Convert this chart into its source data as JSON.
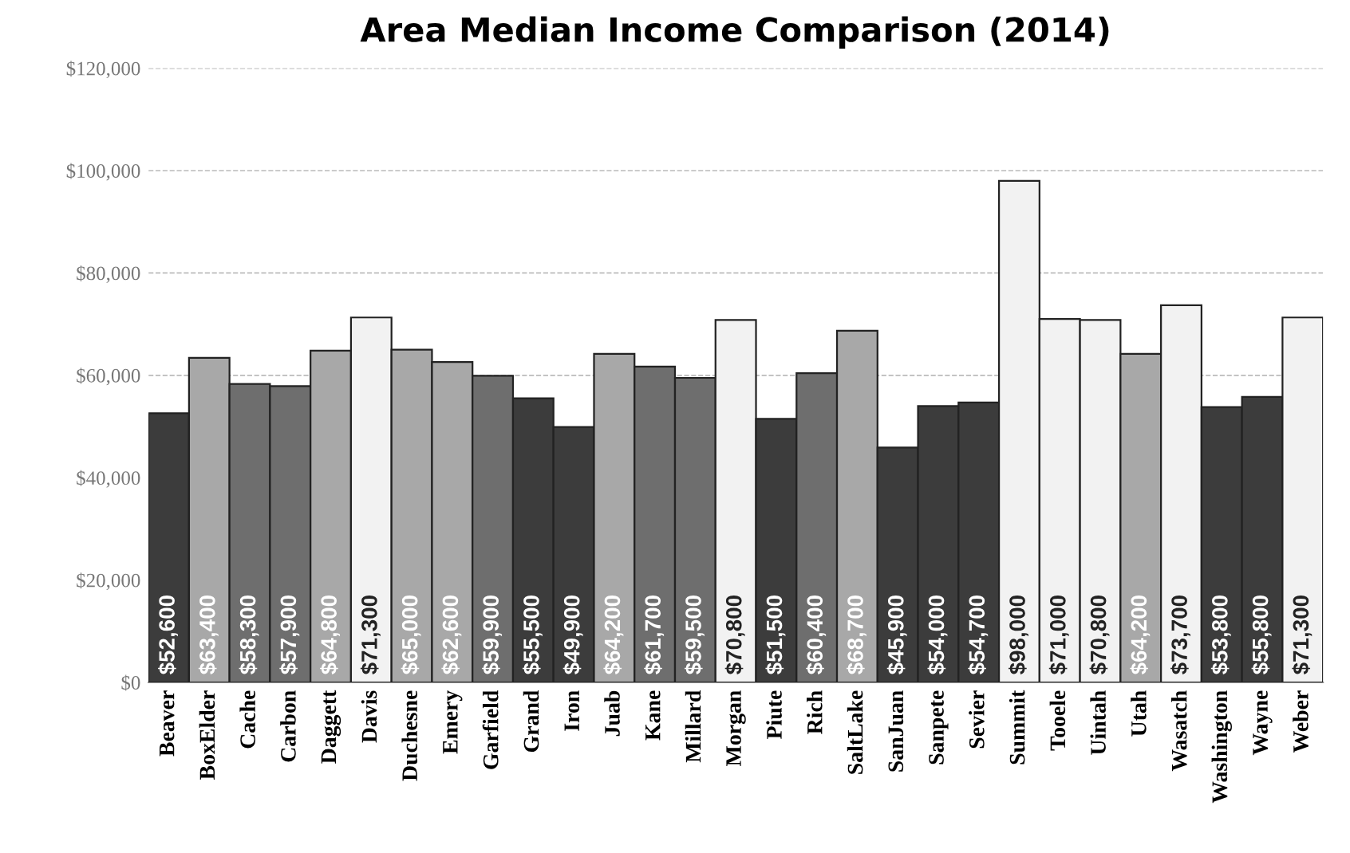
{
  "chart_data": {
    "type": "bar",
    "title": "Area Median Income Comparison (2014)",
    "categories": [
      "Beaver",
      "BoxElder",
      "Cache",
      "Carbon",
      "Daggett",
      "Davis",
      "Duchesne",
      "Emery",
      "Garfield",
      "Grand",
      "Iron",
      "Juab",
      "Kane",
      "Millard",
      "Morgan",
      "Piute",
      "Rich",
      "SaltLake",
      "SanJuan",
      "Sanpete",
      "Sevier",
      "Summit",
      "Tooele",
      "Uintah",
      "Utah",
      "Wasatch",
      "Washington",
      "Wayne",
      "Weber"
    ],
    "values": [
      52600,
      63400,
      58300,
      57900,
      64800,
      71300,
      65000,
      62600,
      59900,
      55500,
      49900,
      64200,
      61700,
      59500,
      70800,
      51500,
      60400,
      68700,
      45900,
      54000,
      54700,
      98000,
      71000,
      70800,
      64200,
      73700,
      53800,
      55800,
      71300
    ],
    "value_labels": [
      "$52,600",
      "$63,400",
      "$58,300",
      "$57,900",
      "$64,800",
      "$71,300",
      "$65,000",
      "$62,600",
      "$59,900",
      "$55,500",
      "$49,900",
      "$64,200",
      "$61,700",
      "$59,500",
      "$70,800",
      "$51,500",
      "$60,400",
      "$68,700",
      "$45,900",
      "$54,000",
      "$54,700",
      "$98,000",
      "$71,000",
      "$70,800",
      "$64,200",
      "$73,700",
      "$53,800",
      "$55,800",
      "$71,300"
    ],
    "colors": [
      "#3c3c3c",
      "#a8a8a8",
      "#6e6e6e",
      "#6e6e6e",
      "#a8a8a8",
      "#f2f2f2",
      "#a8a8a8",
      "#a8a8a8",
      "#6e6e6e",
      "#3c3c3c",
      "#3c3c3c",
      "#a8a8a8",
      "#6e6e6e",
      "#6e6e6e",
      "#f2f2f2",
      "#3c3c3c",
      "#6e6e6e",
      "#a8a8a8",
      "#3c3c3c",
      "#3c3c3c",
      "#3c3c3c",
      "#f2f2f2",
      "#f2f2f2",
      "#f2f2f2",
      "#a8a8a8",
      "#f2f2f2",
      "#3c3c3c",
      "#3c3c3c",
      "#f2f2f2"
    ],
    "ylim": [
      0,
      120000
    ],
    "yticks": [
      {
        "value": 0,
        "label": "$0"
      },
      {
        "value": 20000,
        "label": "$20,000"
      },
      {
        "value": 40000,
        "label": "$40,000"
      },
      {
        "value": 60000,
        "label": "$60,000"
      },
      {
        "value": 80000,
        "label": "$80,000"
      },
      {
        "value": 100000,
        "label": "$100,000"
      },
      {
        "value": 120000,
        "label": "$120,000"
      }
    ],
    "grid": "y"
  }
}
